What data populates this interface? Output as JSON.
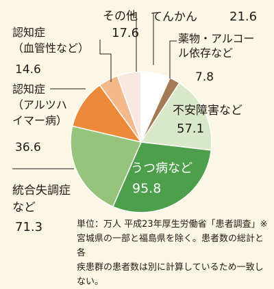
{
  "chart_data": {
    "type": "pie",
    "start": "12 o'clock, clockwise",
    "slices": [
      {
        "name": "てんかん",
        "label_lines": [
          "てんかん"
        ],
        "value": 21.6,
        "value_label": "21.6",
        "color": "#ffffff"
      },
      {
        "name": "薬物・アルコール依存など",
        "label_lines": [
          "薬物・アルコー",
          "ル依存など"
        ],
        "value": 7.8,
        "value_label": "7.8",
        "color": "#a57a57"
      },
      {
        "name": "不安障害など",
        "label_lines": [
          "不安障害など"
        ],
        "value": 57.1,
        "value_label": "57.1",
        "color": "#d9e8c8"
      },
      {
        "name": "うつ病など",
        "label_lines": [
          "うつ病など"
        ],
        "value": 95.8,
        "value_label": "95.8",
        "color": "#4e9f4c"
      },
      {
        "name": "統合失調症など",
        "label_lines": [
          "統合失調症",
          "など"
        ],
        "value": 71.3,
        "value_label": "71.3",
        "color": "#95c47a"
      },
      {
        "name": "認知症（アルツハイマー病）",
        "label_lines": [
          "認知症",
          "（アルツハ",
          "イマー病）"
        ],
        "value": 36.6,
        "value_label": "36.6",
        "color": "#ec8a3a"
      },
      {
        "name": "認知症（血管性など）",
        "label_lines": [
          "認知症",
          "（血管性など）"
        ],
        "value": 14.6,
        "value_label": "14.6",
        "color": "#f4b98a"
      },
      {
        "name": "その他",
        "label_lines": [
          "その他"
        ],
        "value": 17.6,
        "value_label": "17.6",
        "color": "#f7e9e0"
      }
    ],
    "note": "単位：万人 平成23年厚生労働省「患者調査」※宮城県の一部と福島県を除く。患者数の総計と各疾患群の患者数は別に計算しているため一致しない。"
  }
}
